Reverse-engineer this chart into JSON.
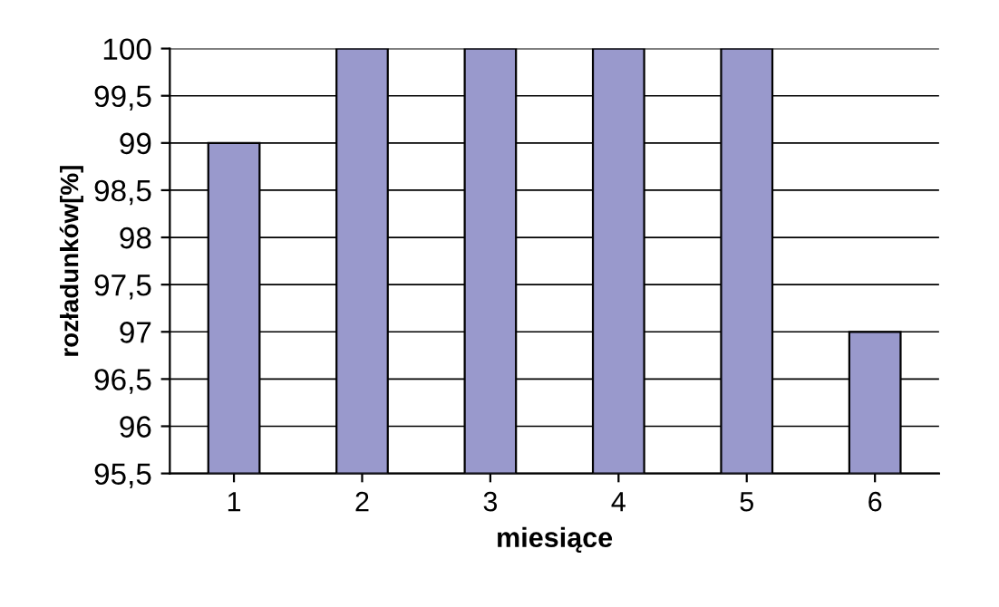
{
  "chart_data": {
    "type": "bar",
    "categories": [
      "1",
      "2",
      "3",
      "4",
      "5",
      "6"
    ],
    "values": [
      99,
      100,
      100,
      100,
      100,
      97
    ],
    "color": "#9999cc",
    "xlabel": "miesiące",
    "ylabel": "rozładunków[%]",
    "ylim": [
      95.5,
      100
    ],
    "yticks": [
      {
        "value": 95.5,
        "label": "95,5"
      },
      96,
      {
        "value": 96.5,
        "label": "96,5"
      },
      97,
      {
        "value": 97.5,
        "label": "97,5"
      },
      98,
      {
        "value": 98.5,
        "label": "98,5"
      },
      99,
      {
        "value": 99.5,
        "label": "99,5"
      },
      100
    ],
    "grid": "y"
  }
}
